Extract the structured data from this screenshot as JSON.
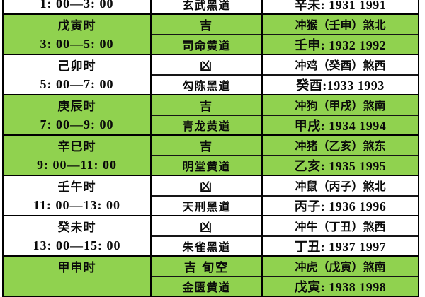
{
  "table": {
    "colors": {
      "green_row": "#90d24f",
      "white_row": "#ffffff",
      "border": "#000000",
      "text": "#0a0a0a"
    },
    "columns": [
      "hour",
      "luck_path",
      "clash_years"
    ],
    "top_partial_row": {
      "green": false,
      "time": "1: 00—3: 00",
      "path": "玄武黑道",
      "years": "辛未: 1931 1991"
    },
    "rows": [
      {
        "green": true,
        "name": "戊寅时",
        "time": "3: 00—5: 00",
        "luck": "吉",
        "path": "司命黄道",
        "clash": "冲猴（壬申）煞北",
        "years": "壬申: 1932 1992"
      },
      {
        "green": false,
        "name": "己卯时",
        "time": "5: 00—7: 00",
        "luck": "凶",
        "path": "勾陈黑道",
        "clash": "冲鸡（癸酉）煞西",
        "years": "癸酉:1933 1993"
      },
      {
        "green": true,
        "name": "庚辰时",
        "time": "7: 00—9: 00",
        "luck": "吉",
        "path": "青龙黄道",
        "clash": "冲狗（甲戌）煞南",
        "years": "甲戌: 1934 1994"
      },
      {
        "green": true,
        "name": "辛巳时",
        "time": "9: 00—11: 00",
        "luck": "吉",
        "path": "明堂黄道",
        "clash": "冲猪（乙亥）煞东",
        "years": "乙亥: 1935 1995"
      },
      {
        "green": false,
        "name": "壬午时",
        "time": "11: 00—13: 00",
        "luck": "凶",
        "path": "天刑黑道",
        "clash": "冲鼠（丙子）煞北",
        "years": "丙子: 1936 1996"
      },
      {
        "green": false,
        "name": "癸未时",
        "time": "13: 00—15: 00",
        "luck": "凶",
        "path": "朱雀黑道",
        "clash": "冲牛（丁丑）煞西",
        "years": "丁丑: 1937 1997"
      },
      {
        "green": true,
        "name": "甲申时",
        "time": "",
        "luck": "吉 旬空",
        "path": "金匮黄道",
        "clash": "冲虎（戊寅）煞南",
        "years": "戊寅: 1938 1998"
      }
    ]
  }
}
